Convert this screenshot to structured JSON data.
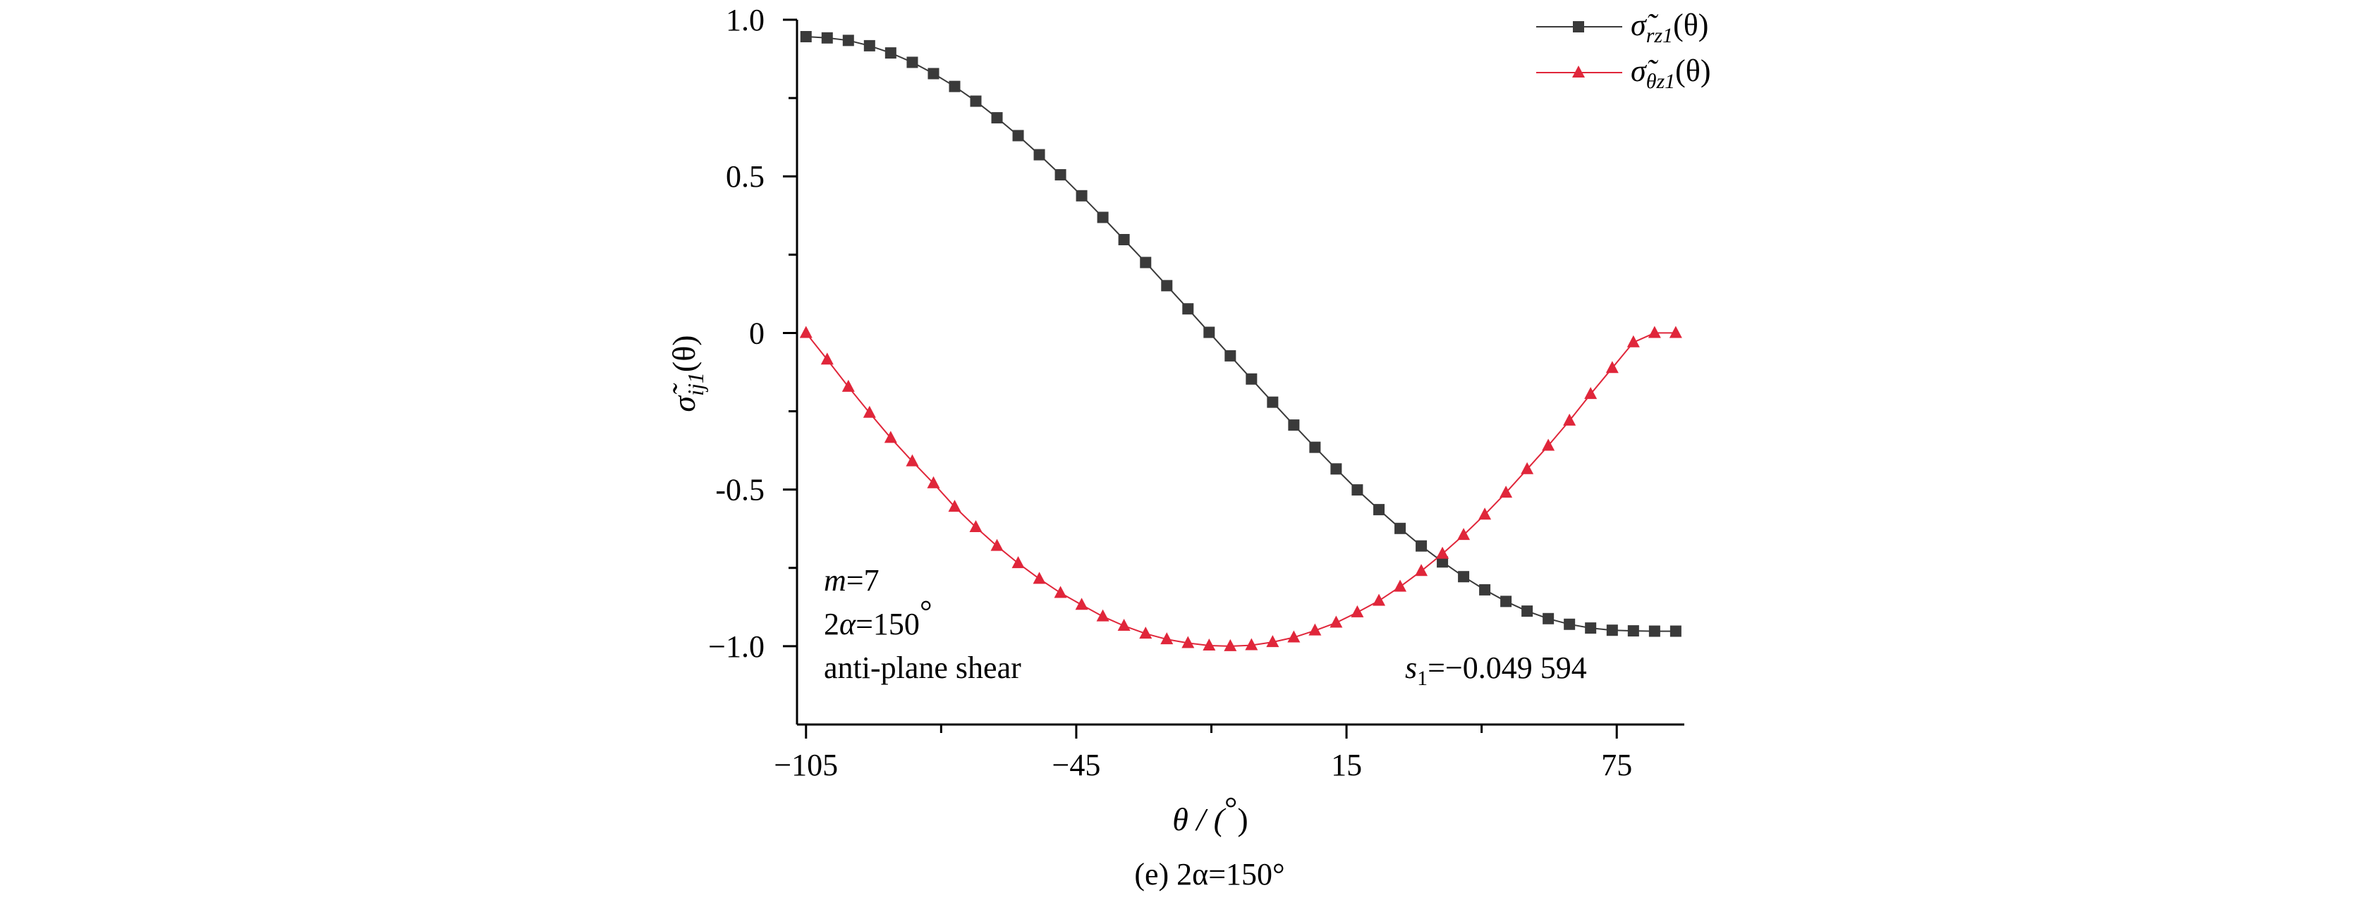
{
  "chart_data": {
    "type": "line",
    "title": "",
    "caption": "(e) 2α=150°",
    "xlabel": {
      "main": "θ / (",
      "unit": "°",
      "close": ")"
    },
    "ylabel": {
      "main": "σ̃",
      "sub": "ij1",
      "tail": "(θ)"
    },
    "xlim": [
      -107,
      90
    ],
    "ylim": [
      -1.25,
      1.0
    ],
    "x_ticks": [
      -105,
      -45,
      15,
      75
    ],
    "x_tick_labels": [
      "−105",
      "−45",
      "15",
      "75"
    ],
    "x_minor_ticks": [
      -75,
      -15,
      45
    ],
    "y_ticks": [
      1.0,
      0.5,
      0,
      -0.5,
      -1.0
    ],
    "y_tick_labels": [
      "1.0",
      "0.5",
      "0",
      "-0.5",
      "−1.0"
    ],
    "y_minor_ticks": [
      0.75,
      0.25,
      -0.25,
      -0.75
    ],
    "grid": false,
    "legend_position": "top-right",
    "series": [
      {
        "name": {
          "main": "σ̃",
          "sub": "rz1",
          "tail": "(θ)"
        },
        "color": "#3a3a3a",
        "marker": "square",
        "x": [
          -105,
          -100.3,
          -95.6,
          -90.9,
          -86.2,
          -81.4,
          -76.7,
          -72,
          -67.3,
          -62.6,
          -57.9,
          -53.2,
          -48.5,
          -43.8,
          -39.1,
          -34.4,
          -29.6,
          -24.9,
          -20.2,
          -15.5,
          -10.8,
          -6.1,
          -1.4,
          3.3,
          8,
          12.7,
          17.4,
          22.2,
          26.9,
          31.6,
          36.3,
          41,
          45.7,
          50.4,
          55.1,
          59.8,
          64.5,
          69.2,
          74,
          78.7,
          83.4,
          88.1
        ],
        "y": [
          0.946,
          0.942,
          0.934,
          0.917,
          0.894,
          0.864,
          0.828,
          0.787,
          0.74,
          0.687,
          0.63,
          0.569,
          0.505,
          0.438,
          0.369,
          0.298,
          0.225,
          0.151,
          0.077,
          0.002,
          -0.073,
          -0.147,
          -0.221,
          -0.294,
          -0.365,
          -0.434,
          -0.501,
          -0.564,
          -0.624,
          -0.68,
          -0.731,
          -0.778,
          -0.82,
          -0.857,
          -0.888,
          -0.912,
          -0.93,
          -0.942,
          -0.949,
          -0.951,
          -0.952,
          -0.952
        ]
      },
      {
        "name": {
          "main": "σ̃",
          "sub": "θz1",
          "tail": "(θ)"
        },
        "color": "#e0263a",
        "marker": "triangle",
        "x": [
          -105,
          -100.3,
          -95.6,
          -90.9,
          -86.2,
          -81.4,
          -76.7,
          -72,
          -67.3,
          -62.6,
          -57.9,
          -53.2,
          -48.5,
          -43.8,
          -39.1,
          -34.4,
          -29.6,
          -24.9,
          -20.2,
          -15.5,
          -10.8,
          -6.1,
          -1.4,
          3.3,
          8,
          12.7,
          17.4,
          22.2,
          26.9,
          31.6,
          36.3,
          41,
          45.7,
          50.4,
          55.1,
          59.8,
          64.5,
          69.2,
          74,
          78.7,
          83.4,
          88.1
        ],
        "y": [
          0,
          -0.085,
          -0.172,
          -0.255,
          -0.335,
          -0.41,
          -0.48,
          -0.555,
          -0.62,
          -0.68,
          -0.735,
          -0.785,
          -0.83,
          -0.868,
          -0.905,
          -0.935,
          -0.96,
          -0.978,
          -0.99,
          -0.998,
          -1.0,
          -0.997,
          -0.987,
          -0.972,
          -0.95,
          -0.925,
          -0.892,
          -0.855,
          -0.81,
          -0.76,
          -0.705,
          -0.645,
          -0.58,
          -0.51,
          -0.435,
          -0.36,
          -0.28,
          -0.195,
          -0.112,
          -0.03,
          0.0,
          0.0
        ]
      }
    ],
    "annotations": {
      "m_var": "m",
      "m_val": "=7",
      "alpha_prefix": "2",
      "alpha_var": "α",
      "alpha_val": "=150",
      "alpha_deg": "°",
      "load": "anti-plane shear",
      "s_var": "s",
      "s_sub": "1",
      "s_val": "=−0.049 594"
    }
  }
}
